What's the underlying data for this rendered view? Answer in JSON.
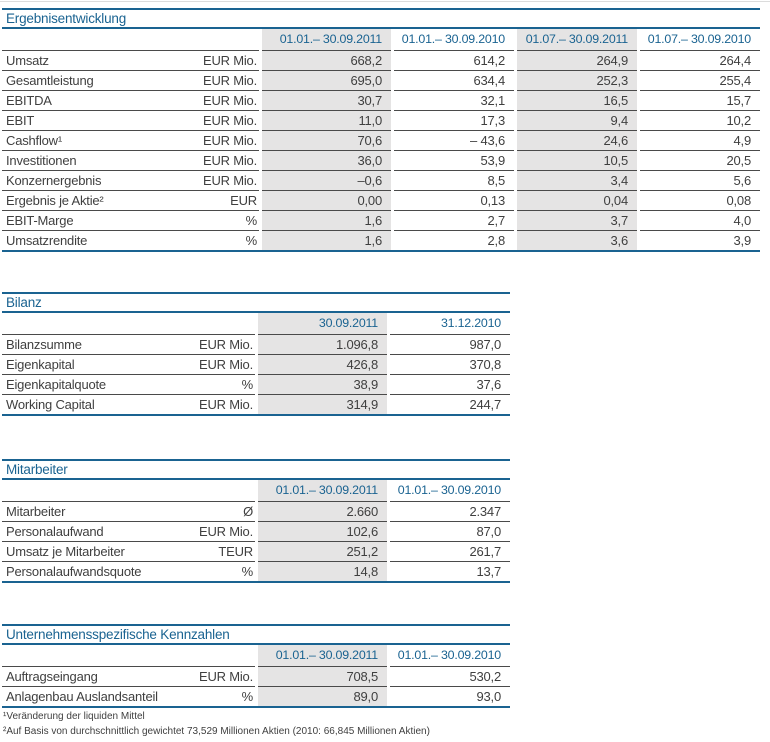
{
  "colors": {
    "accent_blue": "#1a6391",
    "shaded_column_gray": "#e5e4e4",
    "row_rule_gray": "#4a4a4a",
    "text_gray": "#3f3f3f"
  },
  "tables": [
    {
      "title": "Ergebnisentwicklung",
      "columns": [
        "01.01.– 30.09.2011",
        "01.01.– 30.09.2010",
        "01.07.– 30.09.2011",
        "01.07.– 30.09.2010"
      ],
      "rows": [
        {
          "label": "Umsatz",
          "unit": "EUR Mio.",
          "values": [
            "668,2",
            "614,2",
            "264,9",
            "264,4"
          ]
        },
        {
          "label": "Gesamtleistung",
          "unit": "EUR Mio.",
          "values": [
            "695,0",
            "634,4",
            "252,3",
            "255,4"
          ]
        },
        {
          "label": "EBITDA",
          "unit": "EUR Mio.",
          "values": [
            "30,7",
            "32,1",
            "16,5",
            "15,7"
          ]
        },
        {
          "label": "EBIT",
          "unit": "EUR Mio.",
          "values": [
            "11,0",
            "17,3",
            "9,4",
            "10,2"
          ]
        },
        {
          "label": "Cashflow¹",
          "unit": "EUR Mio.",
          "values": [
            "70,6",
            "– 43,6",
            "24,6",
            "4,9"
          ]
        },
        {
          "label": "Investitionen",
          "unit": "EUR Mio.",
          "values": [
            "36,0",
            "53,9",
            "10,5",
            "20,5"
          ]
        },
        {
          "label": "Konzernergebnis",
          "unit": "EUR Mio.",
          "values": [
            "–0,6",
            "8,5",
            "3,4",
            "5,6"
          ]
        },
        {
          "label": "Ergebnis je Aktie²",
          "unit": "EUR",
          "values": [
            "0,00",
            "0,13",
            "0,04",
            "0,08"
          ]
        },
        {
          "label": "EBIT-Marge",
          "unit": "%",
          "values": [
            "1,6",
            "2,7",
            "3,7",
            "4,0"
          ]
        },
        {
          "label": "Umsatzrendite",
          "unit": "%",
          "values": [
            "1,6",
            "2,8",
            "3,6",
            "3,9"
          ]
        }
      ]
    },
    {
      "title": "Bilanz",
      "columns": [
        "30.09.2011",
        "31.12.2010"
      ],
      "rows": [
        {
          "label": "Bilanzsumme",
          "unit": "EUR Mio.",
          "values": [
            "1.096,8",
            "987,0"
          ]
        },
        {
          "label": "Eigenkapital",
          "unit": "EUR Mio.",
          "values": [
            "426,8",
            "370,8"
          ]
        },
        {
          "label": "Eigenkapitalquote",
          "unit": "%",
          "values": [
            "38,9",
            "37,6"
          ]
        },
        {
          "label": "Working Capital",
          "unit": "EUR Mio.",
          "values": [
            "314,9",
            "244,7"
          ]
        }
      ]
    },
    {
      "title": "Mitarbeiter",
      "columns": [
        "01.01.– 30.09.2011",
        "01.01.– 30.09.2010"
      ],
      "rows": [
        {
          "label": "Mitarbeiter",
          "unit": "Ø",
          "values": [
            "2.660",
            "2.347"
          ]
        },
        {
          "label": "Personalaufwand",
          "unit": "EUR Mio.",
          "values": [
            "102,6",
            "87,0"
          ]
        },
        {
          "label": "Umsatz je Mitarbeiter",
          "unit": "TEUR",
          "values": [
            "251,2",
            "261,7"
          ]
        },
        {
          "label": "Personalaufwandsquote",
          "unit": "%",
          "values": [
            "14,8",
            "13,7"
          ]
        }
      ]
    },
    {
      "title": "Unternehmensspezifische Kennzahlen",
      "columns": [
        "01.01.– 30.09.2011",
        "01.01.– 30.09.2010"
      ],
      "rows": [
        {
          "label": "Auftragseingang",
          "unit": "EUR Mio.",
          "values": [
            "708,5",
            "530,2"
          ]
        },
        {
          "label": "Anlagenbau Auslandsanteil",
          "unit": "%",
          "values": [
            "89,0",
            "93,0"
          ]
        }
      ]
    }
  ],
  "footnotes": [
    "¹Veränderung der liquiden Mittel",
    "²Auf Basis von durchschnittlich gewichtet 73,529 Millionen Aktien (2010: 66,845 Millionen Aktien)"
  ]
}
